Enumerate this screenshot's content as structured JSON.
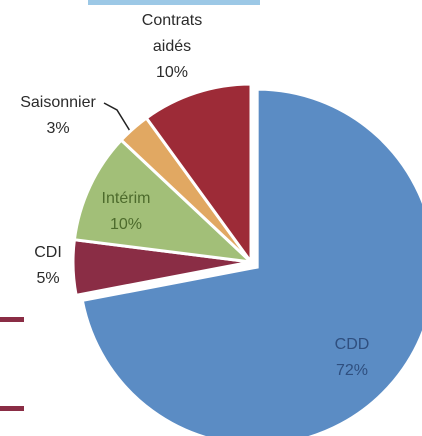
{
  "chart_data": {
    "type": "pie",
    "categories": [
      "CDD",
      "CDI",
      "Intérim",
      "Saisonnier",
      "Contrats aidés"
    ],
    "values": [
      72,
      5,
      10,
      3,
      10
    ],
    "value_labels": [
      "72%",
      "5%",
      "10%",
      "3%",
      "10%"
    ],
    "colors": [
      "#5b8cc4",
      "#8a2d45",
      "#a2bf78",
      "#e1a862",
      "#9d2b37"
    ]
  }
}
